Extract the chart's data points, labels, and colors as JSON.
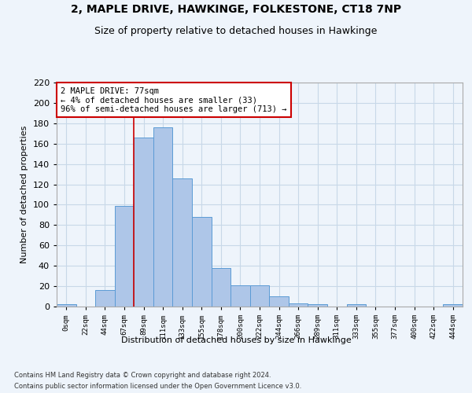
{
  "title_line1": "2, MAPLE DRIVE, HAWKINGE, FOLKESTONE, CT18 7NP",
  "title_line2": "Size of property relative to detached houses in Hawkinge",
  "xlabel": "Distribution of detached houses by size in Hawkinge",
  "ylabel": "Number of detached properties",
  "footnote1": "Contains HM Land Registry data © Crown copyright and database right 2024.",
  "footnote2": "Contains public sector information licensed under the Open Government Licence v3.0.",
  "bar_labels": [
    "0sqm",
    "22sqm",
    "44sqm",
    "67sqm",
    "89sqm",
    "111sqm",
    "133sqm",
    "155sqm",
    "178sqm",
    "200sqm",
    "222sqm",
    "244sqm",
    "266sqm",
    "289sqm",
    "311sqm",
    "333sqm",
    "355sqm",
    "377sqm",
    "400sqm",
    "422sqm",
    "444sqm"
  ],
  "bar_values": [
    2,
    0,
    16,
    99,
    166,
    176,
    126,
    88,
    38,
    21,
    21,
    10,
    3,
    2,
    0,
    2,
    0,
    0,
    0,
    0,
    2
  ],
  "bar_color": "#aec6e8",
  "bar_edge_color": "#5b9bd5",
  "grid_color": "#c8d8e8",
  "background_color": "#eef4fb",
  "vline_x": 3.5,
  "vline_color": "#cc0000",
  "annotation_text": "2 MAPLE DRIVE: 77sqm\n← 4% of detached houses are smaller (33)\n96% of semi-detached houses are larger (713) →",
  "annotation_box_color": "#ffffff",
  "annotation_box_edge_color": "#cc0000",
  "ylim": [
    0,
    220
  ],
  "yticks": [
    0,
    20,
    40,
    60,
    80,
    100,
    120,
    140,
    160,
    180,
    200,
    220
  ],
  "title_fontsize": 10,
  "subtitle_fontsize": 9,
  "xlabel_fontsize": 8,
  "ylabel_fontsize": 8,
  "footnote_fontsize": 6
}
